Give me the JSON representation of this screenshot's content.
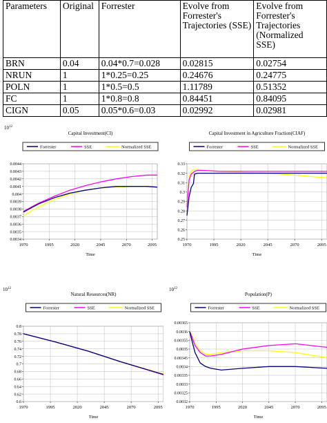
{
  "table": {
    "headers": [
      "Parameters",
      "Original",
      "Forrester",
      "Evolve from Forrester's Trajectories (SSE)",
      "Evolve from Forrester's Trajectories (Normalized SSE)"
    ],
    "rows": [
      [
        "BRN",
        "0.04",
        "0.04*0.7=0.028",
        "0.02815",
        "0.02754"
      ],
      [
        "NRUN",
        "1",
        "1*0.25=0.25",
        "0.24676",
        "0.24775"
      ],
      [
        "POLN",
        "1",
        "1*0.5=0.5",
        "1.11789",
        "0.51352"
      ],
      [
        "FC",
        "1",
        "1*0.8=0.8",
        "0.84451",
        "0.84095"
      ],
      [
        "CIGN",
        "0.05",
        "0.05*0.6=0.03",
        "0.02992",
        "0.02981"
      ]
    ]
  },
  "colors": {
    "forrester": "#00007f",
    "sse": "#ff00ff",
    "normalized": "#ffff00",
    "grid": "#bdbdbd",
    "plot_bg": "#ffffff"
  },
  "chart_data": [
    {
      "id": "ci",
      "type": "line",
      "title": "Capital Investment(CI)",
      "exponent": "10^12",
      "xlabel": "Time",
      "x_ticks": [
        1970,
        1995,
        2020,
        2045,
        2070,
        2095
      ],
      "xlim": [
        1970,
        2100
      ],
      "y_ticks": [
        "0.0034",
        "0.0035",
        "0.0036",
        "0.0037",
        "0.0038",
        "0.0039",
        "0.004",
        "0.0041",
        "0.0042",
        "0.0043",
        "0.0044"
      ],
      "ylim": [
        0.0034,
        0.0044
      ],
      "legend": [
        "Forrester",
        "SSE",
        "Normalized SSE"
      ],
      "x": [
        1970,
        1985,
        2000,
        2015,
        2030,
        2045,
        2060,
        2075,
        2090,
        2100
      ],
      "series": [
        {
          "name": "Forrester",
          "values": [
            0.00376,
            0.00387,
            0.00395,
            0.00401,
            0.00405,
            0.00408,
            0.0041,
            0.0041,
            0.0041,
            0.00409
          ]
        },
        {
          "name": "SSE",
          "values": [
            0.00377,
            0.00388,
            0.00397,
            0.00405,
            0.00411,
            0.00416,
            0.0042,
            0.00423,
            0.00425,
            0.00425
          ]
        },
        {
          "name": "Normalized SSE",
          "values": [
            0.00371,
            0.00383,
            0.00393,
            0.004,
            0.00405,
            0.00408,
            0.00409,
            0.0041,
            0.0041,
            0.0041
          ]
        }
      ]
    },
    {
      "id": "ciaf",
      "type": "line",
      "title": "Capital Investment in Agriculture Fraction(CIAF)",
      "exponent": "",
      "xlabel": "Time",
      "x_ticks": [
        1970,
        1995,
        2020,
        2045,
        2070,
        2095
      ],
      "xlim": [
        1970,
        2100
      ],
      "y_ticks": [
        "0.25",
        "0.26",
        "0.27",
        "0.28",
        "0.29",
        "0.3",
        "0.31",
        "0.32",
        "0.33"
      ],
      "ylim": [
        0.25,
        0.33
      ],
      "legend": [
        "Forrester",
        "SSE",
        "Normalized SSE"
      ],
      "x": [
        1970,
        1972,
        1974,
        1976,
        1977,
        1980,
        1985,
        2000,
        2020,
        2045,
        2070,
        2100
      ],
      "series": [
        {
          "name": "Forrester",
          "values": [
            0.275,
            0.295,
            0.305,
            0.309,
            0.319,
            0.32,
            0.32,
            0.32,
            0.32,
            0.32,
            0.32,
            0.32
          ]
        },
        {
          "name": "SSE",
          "values": [
            0.284,
            0.313,
            0.319,
            0.321,
            0.322,
            0.323,
            0.323,
            0.322,
            0.322,
            0.322,
            0.322,
            0.322
          ]
        },
        {
          "name": "Normalized SSE",
          "values": [
            0.286,
            0.316,
            0.322,
            0.324,
            0.324,
            0.324,
            0.323,
            0.322,
            0.321,
            0.32,
            0.318,
            0.315
          ]
        }
      ]
    },
    {
      "id": "nr",
      "type": "line",
      "title": "Natural Resources(NR)",
      "exponent": "10^12",
      "xlabel": "Time",
      "x_ticks": [
        1970,
        1995,
        2020,
        2045,
        2070,
        2095
      ],
      "xlim": [
        1970,
        2100
      ],
      "y_ticks": [
        "0.6",
        "0.62",
        "0.64",
        "0.66",
        "0.68",
        "0.7",
        "0.72",
        "0.74",
        "0.76",
        "0.78",
        "0.8"
      ],
      "ylim": [
        0.6,
        0.8
      ],
      "legend": [
        "Forrester",
        "SSE",
        "Normalized SSE"
      ],
      "x": [
        1970,
        2000,
        2030,
        2060,
        2100
      ],
      "series": [
        {
          "name": "Forrester",
          "values": [
            0.78,
            0.758,
            0.734,
            0.706,
            0.672
          ]
        },
        {
          "name": "SSE",
          "values": [
            0.78,
            0.758,
            0.734,
            0.706,
            0.671
          ]
        },
        {
          "name": "Normalized SSE",
          "values": [
            0.78,
            0.758,
            0.734,
            0.706,
            0.673
          ]
        }
      ]
    },
    {
      "id": "pop",
      "type": "line",
      "title": "Population(P)",
      "exponent": "10^12",
      "xlabel": "Time",
      "x_ticks": [
        1970,
        1995,
        2020,
        2045,
        2070,
        2095
      ],
      "xlim": [
        1970,
        2100
      ],
      "y_ticks": [
        "0.0032",
        "0.00325",
        "0.0033",
        "0.00335",
        "0.0034",
        "0.00345",
        "0.0035",
        "0.00355",
        "0.0036",
        "0.00365"
      ],
      "ylim": [
        0.0032,
        0.00365
      ],
      "legend": [
        "Forrester",
        "SSE",
        "Normalized SSE"
      ],
      "x": [
        1970,
        1972,
        1975,
        1980,
        1985,
        1990,
        2000,
        2020,
        2045,
        2070,
        2100
      ],
      "series": [
        {
          "name": "Forrester",
          "values": [
            0.0036,
            0.00355,
            0.00348,
            0.00342,
            0.0034,
            0.00339,
            0.00338,
            0.00339,
            0.0034,
            0.0034,
            0.00339
          ]
        },
        {
          "name": "SSE",
          "values": [
            0.0036,
            0.00357,
            0.00352,
            0.00348,
            0.00346,
            0.00346,
            0.00347,
            0.0035,
            0.00352,
            0.00353,
            0.00351
          ]
        },
        {
          "name": "Normalized SSE",
          "values": [
            0.0036,
            0.00358,
            0.00353,
            0.00349,
            0.00347,
            0.00347,
            0.00348,
            0.00349,
            0.00349,
            0.00348,
            0.00345
          ]
        }
      ]
    }
  ]
}
